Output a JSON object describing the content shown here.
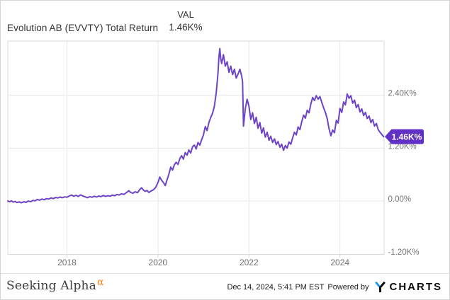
{
  "header": {
    "title": "Evolution AB (EVVTY) Total Return",
    "val_label": "VAL",
    "val_value": "1.46K%"
  },
  "chart_data": {
    "type": "line",
    "title": "Evolution AB (EVVTY) Total Return",
    "series_name": "Evolution AB (EVVTY) Total Return",
    "legend_header": "VAL",
    "last_value_label": "1.46K%",
    "last_value_pct": 1460,
    "x_range": [
      2016.7,
      2024.97
    ],
    "y_range": [
      -1210,
      3630
    ],
    "grid": true,
    "y_ticks": [
      {
        "v": 2400,
        "label": "2.40K%"
      },
      {
        "v": 1200,
        "label": "1.20K%"
      },
      {
        "v": 0,
        "label": "0.00%"
      },
      {
        "v": -1200,
        "label": "-1.20K%"
      }
    ],
    "x_ticks": [
      {
        "v": 2018,
        "label": "2018"
      },
      {
        "v": 2020,
        "label": "2020"
      },
      {
        "v": 2022,
        "label": "2022"
      },
      {
        "v": 2024,
        "label": "2024"
      }
    ],
    "points": [
      [
        2016.7,
        0
      ],
      [
        2016.74,
        -15
      ],
      [
        2016.78,
        5
      ],
      [
        2016.82,
        -25
      ],
      [
        2016.86,
        -10
      ],
      [
        2016.9,
        -35
      ],
      [
        2016.95,
        -20
      ],
      [
        2017.0,
        -40
      ],
      [
        2017.05,
        -15
      ],
      [
        2017.1,
        -30
      ],
      [
        2017.15,
        0
      ],
      [
        2017.2,
        -15
      ],
      [
        2017.25,
        15
      ],
      [
        2017.3,
        5
      ],
      [
        2017.35,
        35
      ],
      [
        2017.4,
        20
      ],
      [
        2017.45,
        45
      ],
      [
        2017.5,
        30
      ],
      [
        2017.55,
        55
      ],
      [
        2017.6,
        45
      ],
      [
        2017.65,
        70
      ],
      [
        2017.7,
        55
      ],
      [
        2017.75,
        80
      ],
      [
        2017.8,
        70
      ],
      [
        2017.85,
        90
      ],
      [
        2017.9,
        75
      ],
      [
        2017.95,
        95
      ],
      [
        2018.0,
        85
      ],
      [
        2018.05,
        115
      ],
      [
        2018.1,
        135
      ],
      [
        2018.15,
        110
      ],
      [
        2018.2,
        130
      ],
      [
        2018.25,
        105
      ],
      [
        2018.3,
        140
      ],
      [
        2018.35,
        115
      ],
      [
        2018.4,
        95
      ],
      [
        2018.45,
        75
      ],
      [
        2018.5,
        100
      ],
      [
        2018.55,
        85
      ],
      [
        2018.6,
        110
      ],
      [
        2018.65,
        90
      ],
      [
        2018.7,
        115
      ],
      [
        2018.75,
        100
      ],
      [
        2018.8,
        125
      ],
      [
        2018.85,
        105
      ],
      [
        2018.9,
        120
      ],
      [
        2018.95,
        110
      ],
      [
        2019.0,
        135
      ],
      [
        2019.05,
        120
      ],
      [
        2019.1,
        150
      ],
      [
        2019.15,
        135
      ],
      [
        2019.2,
        165
      ],
      [
        2019.25,
        150
      ],
      [
        2019.3,
        185
      ],
      [
        2019.36,
        235
      ],
      [
        2019.4,
        195
      ],
      [
        2019.45,
        175
      ],
      [
        2019.5,
        210
      ],
      [
        2019.55,
        190
      ],
      [
        2019.6,
        260
      ],
      [
        2019.64,
        300
      ],
      [
        2019.68,
        250
      ],
      [
        2019.72,
        220
      ],
      [
        2019.76,
        240
      ],
      [
        2019.8,
        195
      ],
      [
        2019.85,
        230
      ],
      [
        2019.9,
        255
      ],
      [
        2019.95,
        310
      ],
      [
        2020.0,
        420
      ],
      [
        2020.04,
        545
      ],
      [
        2020.08,
        470
      ],
      [
        2020.12,
        420
      ],
      [
        2020.16,
        350
      ],
      [
        2020.2,
        480
      ],
      [
        2020.24,
        610
      ],
      [
        2020.28,
        770
      ],
      [
        2020.32,
        700
      ],
      [
        2020.36,
        820
      ],
      [
        2020.4,
        880
      ],
      [
        2020.44,
        830
      ],
      [
        2020.48,
        960
      ],
      [
        2020.52,
        1030
      ],
      [
        2020.56,
        950
      ],
      [
        2020.6,
        1100
      ],
      [
        2020.64,
        1040
      ],
      [
        2020.68,
        1160
      ],
      [
        2020.72,
        1090
      ],
      [
        2020.76,
        1230
      ],
      [
        2020.8,
        1270
      ],
      [
        2020.84,
        1180
      ],
      [
        2020.88,
        1330
      ],
      [
        2020.92,
        1270
      ],
      [
        2020.96,
        1390
      ],
      [
        2021.0,
        1500
      ],
      [
        2021.04,
        1690
      ],
      [
        2021.08,
        1600
      ],
      [
        2021.12,
        1780
      ],
      [
        2021.16,
        1900
      ],
      [
        2021.2,
        1990
      ],
      [
        2021.24,
        2150
      ],
      [
        2021.28,
        2450
      ],
      [
        2021.32,
        2900
      ],
      [
        2021.34,
        3260
      ],
      [
        2021.36,
        3460
      ],
      [
        2021.38,
        3230
      ],
      [
        2021.4,
        3120
      ],
      [
        2021.44,
        3320
      ],
      [
        2021.48,
        3060
      ],
      [
        2021.52,
        3160
      ],
      [
        2021.56,
        2920
      ],
      [
        2021.6,
        3060
      ],
      [
        2021.64,
        2870
      ],
      [
        2021.68,
        2990
      ],
      [
        2021.72,
        2790
      ],
      [
        2021.76,
        2880
      ],
      [
        2021.8,
        2990
      ],
      [
        2021.84,
        2840
      ],
      [
        2021.86,
        2700
      ],
      [
        2021.88,
        1700
      ],
      [
        2021.92,
        2100
      ],
      [
        2021.96,
        2310
      ],
      [
        2022.0,
        2150
      ],
      [
        2022.04,
        1850
      ],
      [
        2022.08,
        2000
      ],
      [
        2022.12,
        1760
      ],
      [
        2022.16,
        1900
      ],
      [
        2022.2,
        1650
      ],
      [
        2022.24,
        1780
      ],
      [
        2022.28,
        1540
      ],
      [
        2022.32,
        1660
      ],
      [
        2022.36,
        1450
      ],
      [
        2022.4,
        1560
      ],
      [
        2022.44,
        1380
      ],
      [
        2022.48,
        1470
      ],
      [
        2022.52,
        1330
      ],
      [
        2022.56,
        1410
      ],
      [
        2022.6,
        1280
      ],
      [
        2022.64,
        1350
      ],
      [
        2022.68,
        1220
      ],
      [
        2022.72,
        1290
      ],
      [
        2022.76,
        1150
      ],
      [
        2022.8,
        1260
      ],
      [
        2022.84,
        1200
      ],
      [
        2022.88,
        1340
      ],
      [
        2022.92,
        1290
      ],
      [
        2022.96,
        1430
      ],
      [
        2023.0,
        1560
      ],
      [
        2023.04,
        1500
      ],
      [
        2023.08,
        1680
      ],
      [
        2023.12,
        1620
      ],
      [
        2023.16,
        1800
      ],
      [
        2023.2,
        1950
      ],
      [
        2023.24,
        1880
      ],
      [
        2023.28,
        2060
      ],
      [
        2023.32,
        2000
      ],
      [
        2023.36,
        2200
      ],
      [
        2023.4,
        2350
      ],
      [
        2023.44,
        2280
      ],
      [
        2023.48,
        2390
      ],
      [
        2023.52,
        2310
      ],
      [
        2023.56,
        2370
      ],
      [
        2023.6,
        2240
      ],
      [
        2023.64,
        2120
      ],
      [
        2023.68,
        2010
      ],
      [
        2023.72,
        1870
      ],
      [
        2023.76,
        1640
      ],
      [
        2023.8,
        1480
      ],
      [
        2023.84,
        1610
      ],
      [
        2023.88,
        1550
      ],
      [
        2023.92,
        1830
      ],
      [
        2023.96,
        1770
      ],
      [
        2024.0,
        2100
      ],
      [
        2024.04,
        2010
      ],
      [
        2024.08,
        2250
      ],
      [
        2024.12,
        2180
      ],
      [
        2024.16,
        2430
      ],
      [
        2024.2,
        2330
      ],
      [
        2024.24,
        2390
      ],
      [
        2024.28,
        2220
      ],
      [
        2024.32,
        2290
      ],
      [
        2024.36,
        2120
      ],
      [
        2024.4,
        2190
      ],
      [
        2024.44,
        2020
      ],
      [
        2024.48,
        2090
      ],
      [
        2024.52,
        1940
      ],
      [
        2024.56,
        2010
      ],
      [
        2024.6,
        1870
      ],
      [
        2024.64,
        1930
      ],
      [
        2024.68,
        1780
      ],
      [
        2024.72,
        1850
      ],
      [
        2024.76,
        1700
      ],
      [
        2024.8,
        1760
      ],
      [
        2024.84,
        1620
      ],
      [
        2024.88,
        1560
      ],
      [
        2024.92,
        1510
      ],
      [
        2024.96,
        1460
      ]
    ]
  },
  "colors": {
    "line": "#6d43c8",
    "badge": "#6131c7",
    "badge_text": "#ffffff",
    "grid": "#e7e7e7",
    "plot_border": "#d8d8d8",
    "axis_text": "#757575",
    "alpha_orange": "#ff7b00",
    "ycharts_blue": "#1e9bf0"
  },
  "footer": {
    "brand": "Seeking Alpha",
    "brand_alpha": "α",
    "timestamp": "Dec 14, 2024, 5:41 PM EST",
    "powered_by": "Powered by",
    "ycharts_wordmark": "CHARTS"
  }
}
